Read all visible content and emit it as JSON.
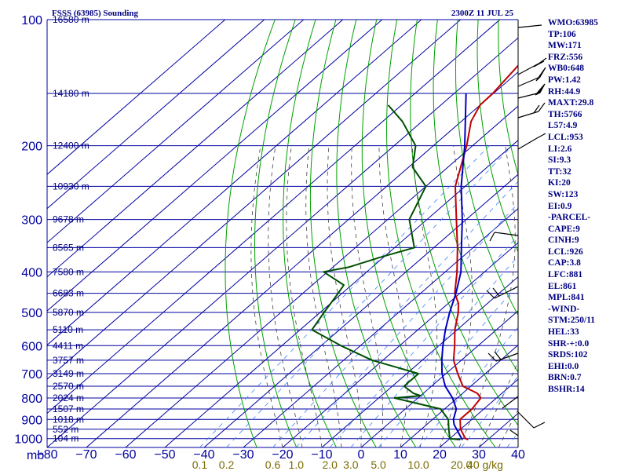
{
  "header": {
    "station": "FSSS (63985) Sounding",
    "time": "2300Z 11 JUL 25"
  },
  "indices": [
    "WMO:63985",
    "TP:106",
    "MW:171",
    "FRZ:556",
    "WB0:648",
    "PW:1.42",
    "RH:44.9",
    "MAXT:29.8",
    "TH:5766",
    "L57:4.9",
    "LCL:953",
    "LI:2.6",
    "SI:9.3",
    "TT:32",
    "KI:20",
    "SW:123",
    "EI:0.9",
    "-PARCEL-",
    "CAPE:9",
    "CINH:9",
    "LCL:926",
    "CAP:3.8",
    "LFC:881",
    "EL:861",
    "MPL:841",
    "-WIND-",
    "STM:250/11",
    "HEL:33",
    "SHR-+:0.0",
    "SRDS:102",
    "EHI:0.0",
    "BRN:0.7",
    "BSHR:14"
  ],
  "colors": {
    "isobar": "#0000a0",
    "isotherm": "#0000a0",
    "dry_adiabat": "#00a000",
    "moist_adiabat": "#404040",
    "mixing_ratio": "#4080ff",
    "temperature": "#c00000",
    "dewpoint": "#005000",
    "parcel": "#0000c0",
    "axis_text": "#0000a0",
    "mixing_text": "#7a6a00"
  },
  "chart_data": {
    "type": "line",
    "subtype": "skew-t log-p sounding",
    "title": "FSSS (63985) Sounding",
    "xlabel": "",
    "ylabel": "mb",
    "ylim": [
      1050,
      100
    ],
    "xlim": [
      -80,
      40
    ],
    "y_scale": "log",
    "pressure_ticks": [
      100,
      200,
      300,
      400,
      500,
      600,
      700,
      800,
      900,
      1000
    ],
    "temperature_ticks": [
      -80,
      -70,
      -60,
      -50,
      -40,
      -30,
      -20,
      -10,
      0,
      10,
      20,
      30,
      40
    ],
    "mixing_ratio_labels": [
      "0.1",
      "0.2",
      "0.6",
      "1.0",
      "2.0",
      "3.0",
      "5.0",
      "10.0",
      "20.0",
      "40 g/kg"
    ],
    "mixing_ratio_values": [
      0.1,
      0.2,
      0.6,
      1.0,
      2.0,
      3.0,
      5.0,
      10.0,
      20.0,
      40.0
    ],
    "height_labels": [
      {
        "p": 100,
        "label": "16580 m"
      },
      {
        "p": 150,
        "label": "14180 m"
      },
      {
        "p": 200,
        "label": "12400 m"
      },
      {
        "p": 250,
        "label": "10930 m"
      },
      {
        "p": 300,
        "label": "9678 m"
      },
      {
        "p": 350,
        "label": "8565 m"
      },
      {
        "p": 400,
        "label": "7580 m"
      },
      {
        "p": 450,
        "label": "6683 m"
      },
      {
        "p": 500,
        "label": "5870 m"
      },
      {
        "p": 550,
        "label": "5110 m"
      },
      {
        "p": 600,
        "label": "4411 m"
      },
      {
        "p": 650,
        "label": "3757 m"
      },
      {
        "p": 700,
        "label": "3149 m"
      },
      {
        "p": 750,
        "label": "2570 m"
      },
      {
        "p": 800,
        "label": "2024 m"
      },
      {
        "p": 850,
        "label": "1507 m"
      },
      {
        "p": 900,
        "label": "1018 m"
      },
      {
        "p": 950,
        "label": "552 m"
      },
      {
        "p": 1000,
        "label": "104 m"
      }
    ],
    "series": [
      {
        "key": "temperature",
        "p": [
          1006,
          1000,
          950,
          900,
          850,
          800,
          780,
          750,
          700,
          650,
          600,
          550,
          500,
          475,
          450,
          400,
          350,
          300,
          250,
          200,
          175,
          160,
          150,
          125,
          110,
          105,
          100
        ],
        "t": [
          25.0,
          24.0,
          20.0,
          17.0,
          17.0,
          16.0,
          13.8,
          8.0,
          3.0,
          -2.0,
          -6.0,
          -10.6,
          -14.8,
          -17.5,
          -21.3,
          -27.0,
          -34.0,
          -42.5,
          -52.5,
          -61.5,
          -67.5,
          -70.0,
          -70.2,
          -72.2,
          -80.0,
          -81.3,
          -80.5
        ]
      },
      {
        "key": "dewpoint",
        "p": [
          1006,
          1000,
          950,
          900,
          850,
          800,
          790,
          780,
          750,
          700,
          650,
          600,
          550,
          500,
          450,
          430,
          400,
          390,
          370,
          350,
          300,
          250,
          225,
          200,
          175,
          160
        ],
        "t": [
          23.0,
          20.0,
          17.0,
          14.0,
          9.0,
          -6.0,
          0.0,
          -2.5,
          -7.0,
          -7.0,
          -22.8,
          -35.0,
          -47.0,
          -49.0,
          -51.0,
          -52.0,
          -61.0,
          -56.0,
          -51.0,
          -45.0,
          -54.5,
          -60.0,
          -69.0,
          -74.5,
          -85.0,
          -93.4
        ]
      },
      {
        "key": "parcel",
        "p": [
          1006,
          950,
          926,
          900,
          850,
          800,
          750,
          700,
          650,
          600,
          550,
          500,
          450,
          400,
          350,
          300,
          250,
          200,
          150
        ],
        "t": [
          23.5,
          19.0,
          17.0,
          15.3,
          13.0,
          8.8,
          3.5,
          -1.0,
          -5.0,
          -9.0,
          -13.0,
          -17.0,
          -21.0,
          -26.0,
          -33.0,
          -41.0,
          -51.0,
          -62.0,
          -77.0
        ]
      }
    ]
  }
}
